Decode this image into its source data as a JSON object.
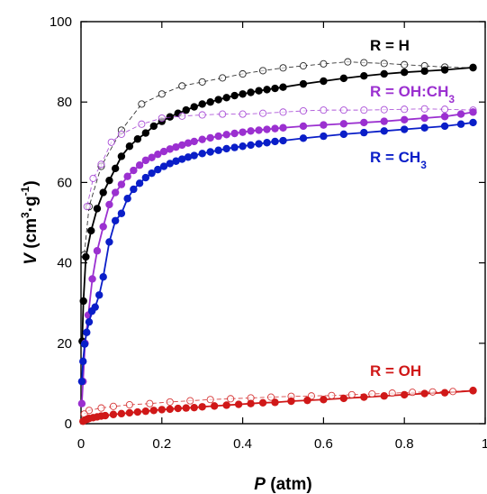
{
  "chart_data": {
    "type": "scatter",
    "xlabel": {
      "var": "P",
      "rest": " (atm)"
    },
    "ylabel": {
      "var": "V",
      "rest": " (cm",
      "sup1": "3",
      "mid": "·g",
      "sup2": "-1",
      "end": ")"
    },
    "xlim": [
      0,
      1
    ],
    "ylim": [
      0,
      100
    ],
    "xticks": [
      "0",
      "0.2",
      "0.4",
      "0.6",
      "0.8",
      "1"
    ],
    "yticks": [
      "0",
      "20",
      "40",
      "60",
      "80",
      "100"
    ],
    "grid": false,
    "legend": "none (series labelled directly on the chart)",
    "series": [
      {
        "name": "R = H",
        "label": {
          "main": "R = H",
          "sub": ""
        },
        "color": "#000000",
        "adsorption": {
          "x": [
            0.003,
            0.006,
            0.012,
            0.025,
            0.04,
            0.055,
            0.07,
            0.085,
            0.1,
            0.12,
            0.14,
            0.16,
            0.18,
            0.2,
            0.22,
            0.24,
            0.26,
            0.28,
            0.3,
            0.32,
            0.34,
            0.36,
            0.38,
            0.4,
            0.42,
            0.44,
            0.46,
            0.48,
            0.5,
            0.55,
            0.6,
            0.65,
            0.7,
            0.75,
            0.8,
            0.85,
            0.9,
            0.97
          ],
          "y": [
            20.5,
            30.5,
            41.5,
            48.0,
            53.5,
            57.5,
            60.5,
            63.5,
            66.5,
            69.0,
            70.8,
            72.3,
            74.0,
            75.2,
            76.3,
            77.2,
            78.0,
            78.8,
            79.5,
            80.0,
            80.6,
            81.1,
            81.6,
            82.0,
            82.4,
            82.8,
            83.1,
            83.4,
            83.7,
            84.5,
            85.2,
            85.9,
            86.5,
            87.0,
            87.4,
            87.7,
            88.0,
            88.6
          ]
        },
        "desorption": {
          "x": [
            0.97,
            0.9,
            0.85,
            0.8,
            0.75,
            0.7,
            0.66,
            0.6,
            0.55,
            0.5,
            0.45,
            0.4,
            0.35,
            0.3,
            0.25,
            0.2,
            0.15,
            0.1,
            0.05,
            0.02,
            0.008
          ],
          "y": [
            88.5,
            88.7,
            89.0,
            89.3,
            89.6,
            89.8,
            90.0,
            89.5,
            89.0,
            88.5,
            87.8,
            87.0,
            86.0,
            85.0,
            84.0,
            82.0,
            79.5,
            73.0,
            64.0,
            54.0,
            42.0
          ]
        }
      },
      {
        "name": "R = OH:CH3",
        "label": {
          "main": "R = OH:CH",
          "sub": "3"
        },
        "color": "#9b30d0",
        "adsorption": {
          "x": [
            0.002,
            0.005,
            0.01,
            0.018,
            0.028,
            0.04,
            0.055,
            0.07,
            0.085,
            0.1,
            0.115,
            0.13,
            0.145,
            0.16,
            0.175,
            0.19,
            0.205,
            0.22,
            0.235,
            0.25,
            0.265,
            0.28,
            0.3,
            0.32,
            0.34,
            0.36,
            0.38,
            0.4,
            0.42,
            0.44,
            0.46,
            0.48,
            0.5,
            0.55,
            0.6,
            0.65,
            0.7,
            0.75,
            0.8,
            0.85,
            0.9,
            0.94,
            0.97
          ],
          "y": [
            5.0,
            10.5,
            20.0,
            27.0,
            36.0,
            43.0,
            49.0,
            54.5,
            57.5,
            59.5,
            61.5,
            63.0,
            64.3,
            65.5,
            66.2,
            67.0,
            67.7,
            68.3,
            68.8,
            69.3,
            69.8,
            70.2,
            70.7,
            71.1,
            71.5,
            71.9,
            72.2,
            72.5,
            72.8,
            73.0,
            73.2,
            73.4,
            73.6,
            74.0,
            74.3,
            74.6,
            74.9,
            75.2,
            75.6,
            76.0,
            76.4,
            77.0,
            77.5
          ]
        },
        "desorption": {
          "x": [
            0.97,
            0.9,
            0.85,
            0.8,
            0.75,
            0.7,
            0.65,
            0.6,
            0.55,
            0.5,
            0.45,
            0.4,
            0.35,
            0.3,
            0.25,
            0.2,
            0.15,
            0.1,
            0.075,
            0.05,
            0.03,
            0.015
          ],
          "y": [
            78.0,
            78.2,
            78.3,
            78.2,
            78.1,
            78.0,
            78.0,
            78.0,
            77.8,
            77.5,
            77.2,
            77.0,
            77.0,
            76.8,
            76.5,
            76.0,
            74.5,
            72.0,
            70.0,
            64.5,
            61.0,
            54.0
          ]
        }
      },
      {
        "name": "R = CH3",
        "label": {
          "main": "R = CH",
          "sub": "3"
        },
        "color": "#0a1ec8",
        "adsorption": {
          "x": [
            0.002,
            0.005,
            0.009,
            0.014,
            0.02,
            0.027,
            0.035,
            0.045,
            0.055,
            0.07,
            0.085,
            0.1,
            0.115,
            0.13,
            0.145,
            0.16,
            0.175,
            0.19,
            0.205,
            0.22,
            0.235,
            0.25,
            0.265,
            0.28,
            0.3,
            0.32,
            0.34,
            0.36,
            0.38,
            0.4,
            0.42,
            0.44,
            0.46,
            0.48,
            0.5,
            0.55,
            0.6,
            0.65,
            0.7,
            0.75,
            0.8,
            0.85,
            0.9,
            0.94,
            0.97
          ],
          "y": [
            10.5,
            15.5,
            19.8,
            22.7,
            25.3,
            28.0,
            29.0,
            32.0,
            36.5,
            45.2,
            50.5,
            52.3,
            56.0,
            58.3,
            59.8,
            61.2,
            62.3,
            63.2,
            64.0,
            64.7,
            65.3,
            65.8,
            66.3,
            66.7,
            67.2,
            67.6,
            68.0,
            68.4,
            68.7,
            69.0,
            69.3,
            69.6,
            69.9,
            70.2,
            70.4,
            71.0,
            71.5,
            72.0,
            72.4,
            72.8,
            73.2,
            73.6,
            74.0,
            74.5,
            74.9
          ]
        },
        "desorption": {
          "x": [],
          "y": []
        }
      },
      {
        "name": "R = OH",
        "label": {
          "main": "R = OH",
          "sub": ""
        },
        "color": "#d01818",
        "adsorption": {
          "x": [
            0.005,
            0.01,
            0.015,
            0.02,
            0.03,
            0.04,
            0.05,
            0.06,
            0.08,
            0.1,
            0.12,
            0.14,
            0.16,
            0.18,
            0.2,
            0.22,
            0.24,
            0.26,
            0.28,
            0.3,
            0.33,
            0.36,
            0.39,
            0.42,
            0.45,
            0.48,
            0.52,
            0.56,
            0.6,
            0.65,
            0.7,
            0.75,
            0.8,
            0.85,
            0.9,
            0.97
          ],
          "y": [
            0.6,
            0.9,
            1.1,
            1.3,
            1.5,
            1.7,
            1.9,
            2.0,
            2.3,
            2.5,
            2.7,
            2.9,
            3.1,
            3.3,
            3.5,
            3.6,
            3.8,
            3.9,
            4.0,
            4.2,
            4.4,
            4.6,
            4.8,
            5.0,
            5.2,
            5.3,
            5.6,
            5.8,
            6.0,
            6.3,
            6.6,
            6.9,
            7.2,
            7.5,
            7.7,
            8.2
          ]
        },
        "desorption": {
          "x": [
            0.97,
            0.92,
            0.87,
            0.82,
            0.77,
            0.72,
            0.67,
            0.62,
            0.57,
            0.52,
            0.47,
            0.42,
            0.37,
            0.32,
            0.27,
            0.22,
            0.17,
            0.12,
            0.08,
            0.05,
            0.02,
            0.008
          ],
          "y": [
            8.3,
            8.0,
            7.9,
            7.8,
            7.6,
            7.4,
            7.2,
            7.0,
            6.9,
            6.8,
            6.6,
            6.4,
            6.2,
            6.0,
            5.7,
            5.4,
            5.0,
            4.7,
            4.3,
            3.9,
            3.3,
            2.4
          ]
        }
      }
    ]
  }
}
